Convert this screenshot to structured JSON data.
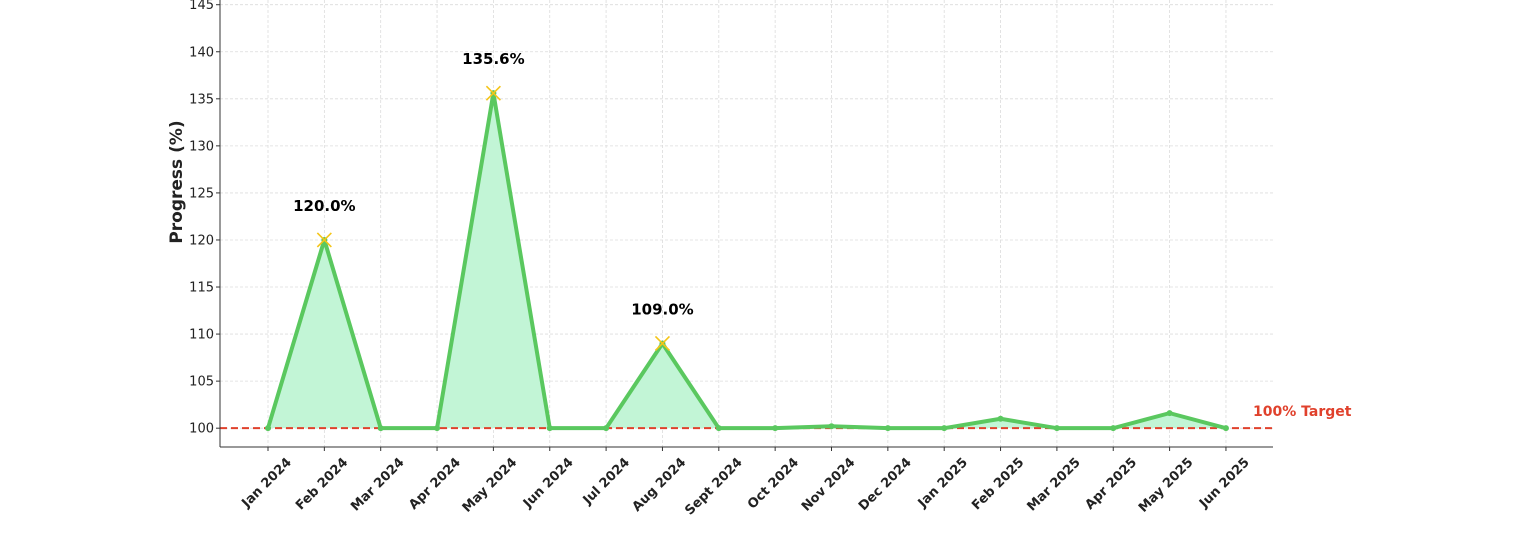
{
  "chart_data": {
    "type": "area",
    "title": "",
    "xlabel": "",
    "ylabel": "Progress (%)",
    "ylim": [
      98,
      145.5
    ],
    "yticks": [
      100,
      105,
      110,
      115,
      120,
      125,
      130,
      135,
      140,
      145
    ],
    "grid": true,
    "categories": [
      "Jan 2024",
      "Feb 2024",
      "Mar 2024",
      "Apr 2024",
      "May 2024",
      "Jun 2024",
      "Jul 2024",
      "Aug 2024",
      "Sept 2024",
      "Oct 2024",
      "Nov 2024",
      "Dec 2024",
      "Jan 2025",
      "Feb 2025",
      "Mar 2025",
      "Apr 2025",
      "May 2025",
      "Jun 2025"
    ],
    "series": [
      {
        "values": [
          100,
          120.0,
          100,
          100,
          135.6,
          100,
          100,
          109.0,
          100,
          100,
          100.2,
          100,
          100,
          101.0,
          100,
          100,
          101.6,
          100
        ],
        "color": "#5ac85f",
        "fill_color": "#c2f5d6"
      }
    ],
    "peaks": [
      {
        "index": 1,
        "label": "120.0%"
      },
      {
        "index": 4,
        "label": "135.6%"
      },
      {
        "index": 7,
        "label": "109.0%"
      }
    ],
    "peak_marker_color": "#f5c518",
    "target": {
      "value": 100,
      "label": "100% Target",
      "color": "#e0412c"
    }
  }
}
